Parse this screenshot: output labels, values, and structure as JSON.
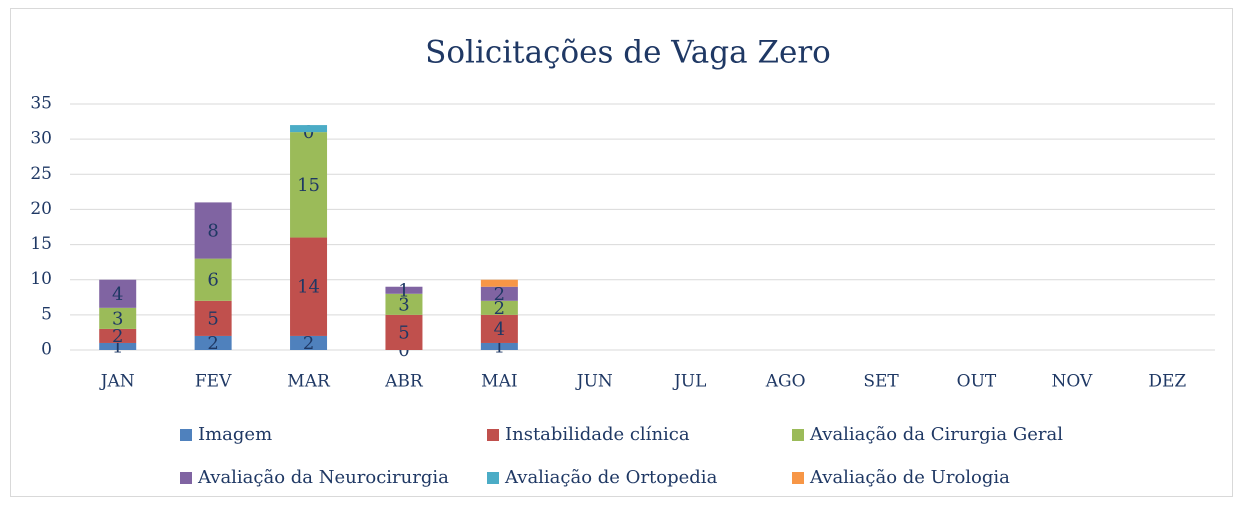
{
  "chart_data": {
    "type": "stacked_bar",
    "title": "Solicitações de Vaga Zero",
    "categories": [
      "JAN",
      "FEV",
      "MAR",
      "ABR",
      "MAI",
      "JUN",
      "JUL",
      "AGO",
      "SET",
      "OUT",
      "NOV",
      "DEZ"
    ],
    "series": [
      {
        "name": "Imagem",
        "color": "#4f81bd",
        "values": [
          1,
          2,
          2,
          0,
          1,
          null,
          null,
          null,
          null,
          null,
          null,
          null
        ],
        "value_labels": [
          "1",
          "2",
          "2",
          "0",
          "1",
          null,
          null,
          null,
          null,
          null,
          null,
          null
        ]
      },
      {
        "name": "Instabilidade clínica",
        "color": "#c0504d",
        "values": [
          2,
          5,
          14,
          5,
          4,
          null,
          null,
          null,
          null,
          null,
          null,
          null
        ],
        "value_labels": [
          "2",
          "5",
          "14",
          "5",
          "4",
          null,
          null,
          null,
          null,
          null,
          null,
          null
        ]
      },
      {
        "name": "Avaliação da Cirurgia Geral",
        "color": "#9bbb59",
        "values": [
          3,
          6,
          15,
          3,
          2,
          null,
          null,
          null,
          null,
          null,
          null,
          null
        ],
        "value_labels": [
          "3",
          "6",
          "15",
          "3",
          "2",
          null,
          null,
          null,
          null,
          null,
          null,
          null
        ]
      },
      {
        "name": "Avaliação da Neurocirurgia",
        "color": "#8064a2",
        "values": [
          4,
          8,
          0,
          1,
          2,
          null,
          null,
          null,
          null,
          null,
          null,
          null
        ],
        "value_labels": [
          "4",
          "8",
          "0",
          "1",
          "2",
          null,
          null,
          null,
          null,
          null,
          null,
          null
        ]
      },
      {
        "name": "Avaliação de Ortopedia",
        "color": "#4bacc6",
        "values": [
          null,
          null,
          1,
          null,
          null,
          null,
          null,
          null,
          null,
          null,
          null,
          null
        ]
      },
      {
        "name": "Avaliação de Urologia",
        "color": "#f79646",
        "values": [
          null,
          null,
          null,
          null,
          1,
          null,
          null,
          null,
          null,
          null,
          null,
          null
        ]
      }
    ],
    "ylim": [
      0,
      35
    ],
    "yticks": [
      0,
      5,
      10,
      15,
      20,
      25,
      30,
      35
    ],
    "grid": true,
    "legend": "bottom"
  }
}
